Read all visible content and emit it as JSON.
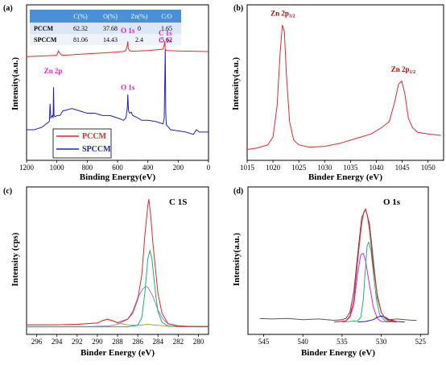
{
  "colors": {
    "red": "#e8262a",
    "blue": "#1c1cd6",
    "magenta": "#e020c8",
    "darkred": "#c00000",
    "green": "#19b36b",
    "violet": "#9a7bd6",
    "olive": "#b4a021",
    "gray": "#555555",
    "table_header": "#4a8fd8",
    "table_row1": "#dbe7f6",
    "table_row2": "#eef3fa"
  },
  "chart_data": [
    {
      "panel": "(a)",
      "type": "line",
      "xlabel": "Binding Energy(eV)",
      "ylabel": "Intensity(a.u.)",
      "xlim": [
        1200,
        0
      ],
      "xticks": [
        "1200",
        "1000",
        "800",
        "600",
        "400",
        "200",
        "0"
      ],
      "xtick_values": [
        1200,
        1000,
        800,
        600,
        400,
        200,
        0
      ],
      "legend_position": "bottom-left",
      "series": [
        {
          "name": "PCCM",
          "color_key": "red",
          "x": [
            1200,
            1100,
            1000,
            990,
            980,
            970,
            960,
            900,
            800,
            700,
            600,
            560,
            545,
            535,
            532,
            529,
            520,
            500,
            400,
            300,
            292,
            288,
            285,
            282,
            275,
            200,
            100,
            0
          ],
          "y": [
            86,
            86.3,
            86.6,
            88.5,
            87.4,
            86.8,
            86.6,
            86.8,
            87.2,
            87.6,
            88,
            88.2,
            88.6,
            91,
            92.5,
            89.5,
            88.5,
            88.3,
            88.6,
            89.2,
            91,
            92.5,
            89,
            88.8,
            88.6,
            88.4,
            88.3,
            88.2
          ]
        },
        {
          "name": "SPCCM",
          "color_key": "blue",
          "x": [
            1200,
            1150,
            1100,
            1060,
            1050,
            1045,
            1040,
            1030,
            1025,
            1022,
            1019,
            1010,
            1000,
            980,
            960,
            900,
            850,
            800,
            750,
            700,
            650,
            600,
            560,
            545,
            536,
            532,
            528,
            520,
            510,
            500,
            480,
            440,
            400,
            350,
            300,
            292,
            288,
            285,
            282,
            278,
            270,
            250,
            200,
            150,
            100,
            80,
            60,
            0
          ],
          "y": [
            55,
            55,
            56,
            58,
            58.5,
            66,
            60,
            61,
            60,
            73,
            61,
            60.5,
            61,
            61,
            63,
            64,
            63,
            62,
            62,
            61,
            61,
            60,
            59,
            60,
            64,
            70,
            63,
            62,
            62.5,
            61,
            60.5,
            59,
            59,
            58.5,
            57.5,
            60,
            78,
            89,
            62,
            57,
            56.5,
            55,
            54.5,
            54,
            53,
            55,
            54,
            54
          ]
        }
      ],
      "annotations": [
        {
          "text": "O 1s",
          "color_key": "magenta",
          "x": 532,
          "y": 96
        },
        {
          "text": "C 1s",
          "color_key": "magenta",
          "x": 285,
          "y": 95
        },
        {
          "text": "Zn 2p",
          "color_key": "magenta",
          "x": 1025,
          "y": 79
        },
        {
          "text": "O 1s",
          "color_key": "magenta",
          "x": 532,
          "y": 72
        },
        {
          "text": "C 1s",
          "color_key": "magenta",
          "x": 285,
          "y": 92
        }
      ],
      "table": {
        "header": [
          "",
          "C(%)",
          "O(%)",
          "Zn(%)",
          "C/O"
        ],
        "rows": [
          [
            "PCCM",
            "62.32",
            "37.68",
            "0",
            "1.65"
          ],
          [
            "SPCCM",
            "81.06",
            "14.43",
            "2.4",
            "5.62"
          ]
        ]
      }
    },
    {
      "panel": "(b)",
      "type": "line",
      "xlabel": "Binder Energy (eV)",
      "ylabel": "Intensity(a.u.)",
      "xlim": [
        1015,
        1053
      ],
      "xticks": [
        "1015",
        "1020",
        "1025",
        "1030",
        "1035",
        "1040",
        "1045",
        "1050"
      ],
      "xtick_values": [
        1015,
        1020,
        1025,
        1030,
        1035,
        1040,
        1045,
        1050
      ],
      "series": [
        {
          "name": "",
          "color_key": "red",
          "x": [
            1015,
            1017,
            1019,
            1020,
            1020.8,
            1021.4,
            1021.8,
            1022.2,
            1022.6,
            1023.2,
            1024,
            1025,
            1027,
            1030,
            1033,
            1036,
            1039,
            1041,
            1042.5,
            1043.5,
            1044.3,
            1044.9,
            1045.5,
            1046.2,
            1047,
            1048,
            1050,
            1052.5
          ],
          "y": [
            12,
            13,
            15,
            20,
            40,
            75,
            92,
            88,
            60,
            30,
            18,
            15,
            13.5,
            14,
            16,
            19,
            22,
            26,
            30,
            42,
            54,
            56,
            48,
            32,
            26,
            23,
            22,
            21
          ]
        }
      ],
      "annotations": [
        {
          "text": "Zn 2p",
          "sub": "3/2",
          "color_key": "darkred",
          "x": 1021.9,
          "y": 98
        },
        {
          "text": "Zn 2p",
          "sub": "1/2",
          "color_key": "darkred",
          "x": 1045.2,
          "y": 62
        }
      ]
    },
    {
      "panel": "(c)",
      "type": "line",
      "title": "C 1S",
      "xlabel": "Binder Energy (eV)",
      "ylabel": "Intensity (cps)",
      "xlim": [
        297,
        279
      ],
      "xticks": [
        "296",
        "294",
        "292",
        "290",
        "288",
        "286",
        "284",
        "282",
        "280"
      ],
      "xtick_values": [
        296,
        294,
        292,
        290,
        288,
        286,
        284,
        282,
        280
      ],
      "series": [
        {
          "name": "",
          "color_key": "olive",
          "x": [
            297,
            294,
            292,
            290,
            289.5,
            289,
            288.5,
            288,
            287,
            286,
            285,
            284,
            283,
            281,
            279
          ],
          "y": [
            1.2,
            1.3,
            1.6,
            2.5,
            4,
            5,
            4,
            2.5,
            1.2,
            1,
            1.6,
            1,
            0.5,
            0.3,
            0.2
          ]
        },
        {
          "name": "",
          "color_key": "violet",
          "x": [
            297,
            291,
            289,
            288,
            287,
            286.5,
            286,
            285.5,
            285.2,
            285,
            284.5,
            284,
            283.5,
            283,
            282,
            280,
            279
          ],
          "y": [
            0,
            0.1,
            0.5,
            1.5,
            5,
            10,
            19,
            25,
            26.5,
            26,
            20,
            11,
            5,
            2,
            0.5,
            0,
            0
          ]
        },
        {
          "name": "",
          "color_key": "green",
          "x": [
            297,
            287,
            286,
            285.6,
            285.3,
            285,
            284.8,
            284.6,
            284.4,
            284.2,
            284,
            283.6,
            283,
            282,
            279
          ],
          "y": [
            0,
            0,
            1,
            6,
            22,
            45,
            50,
            45,
            32,
            20,
            10,
            3,
            0.5,
            0,
            0
          ]
        },
        {
          "name": "",
          "color_key": "red",
          "x": [
            297,
            294,
            292,
            290,
            289.5,
            289,
            288.5,
            288,
            287,
            286.5,
            286,
            285.6,
            285.3,
            285,
            284.9,
            284.7,
            284.5,
            284.2,
            284,
            283.6,
            283,
            282,
            281,
            279
          ],
          "y": [
            1.2,
            1.3,
            1.6,
            2.5,
            4,
            5,
            4,
            2.8,
            5,
            9,
            18,
            34,
            60,
            80,
            84,
            72,
            55,
            35,
            22,
            9,
            2,
            0.6,
            0.3,
            0.2
          ]
        }
      ]
    },
    {
      "panel": "(d)",
      "type": "line",
      "title": "O 1s",
      "xlabel": "Binder Energy (eV)",
      "ylabel": "Intensity(a.u.)",
      "xlim": [
        547,
        524
      ],
      "xticks": [
        "545",
        "540",
        "535",
        "530",
        "525"
      ],
      "xtick_values": [
        545,
        540,
        535,
        530,
        525
      ],
      "series": [
        {
          "name": "",
          "color_key": "gray",
          "x": [
            545.5,
            544,
            542,
            540,
            538,
            536,
            535,
            534.5,
            534,
            533.5,
            533,
            532.5,
            532,
            531.5,
            531,
            530.5,
            530,
            529.5,
            529,
            528,
            527,
            526,
            525.5
          ],
          "y": [
            3,
            2.5,
            3,
            2,
            2.5,
            1.5,
            2,
            3,
            8,
            25,
            55,
            85,
            92,
            80,
            50,
            20,
            8,
            3,
            2,
            2.5,
            2,
            1.5,
            1.5
          ]
        },
        {
          "name": "",
          "color_key": "magenta",
          "x": [
            536,
            534.5,
            534,
            533.5,
            533,
            532.6,
            532.3,
            532,
            531.5,
            531,
            530.5,
            530,
            528
          ],
          "y": [
            0,
            1,
            4,
            14,
            40,
            55,
            56,
            50,
            30,
            12,
            3,
            0.5,
            0
          ]
        },
        {
          "name": "",
          "color_key": "green",
          "x": [
            535,
            533,
            532.6,
            532.3,
            532,
            531.8,
            531.6,
            531.3,
            531,
            530.6,
            530.2,
            529.5,
            528
          ],
          "y": [
            0,
            1,
            4,
            18,
            45,
            62,
            65,
            58,
            40,
            18,
            6,
            1,
            0
          ]
        },
        {
          "name": "",
          "color_key": "blue",
          "x": [
            533,
            532,
            531,
            530.5,
            530,
            529.5,
            529,
            528,
            527
          ],
          "y": [
            0,
            0.5,
            2,
            4,
            5,
            4,
            2,
            0.5,
            0
          ]
        },
        {
          "name": "",
          "color_key": "red",
          "x": [
            536,
            534.5,
            534,
            533.5,
            533,
            532.5,
            532.2,
            532,
            531.8,
            531.5,
            531,
            530.5,
            530,
            529.5,
            529,
            528
          ],
          "y": [
            0,
            1,
            5,
            18,
            50,
            80,
            90,
            92,
            88,
            75,
            45,
            22,
            8,
            3,
            1,
            0.5
          ]
        }
      ]
    }
  ]
}
